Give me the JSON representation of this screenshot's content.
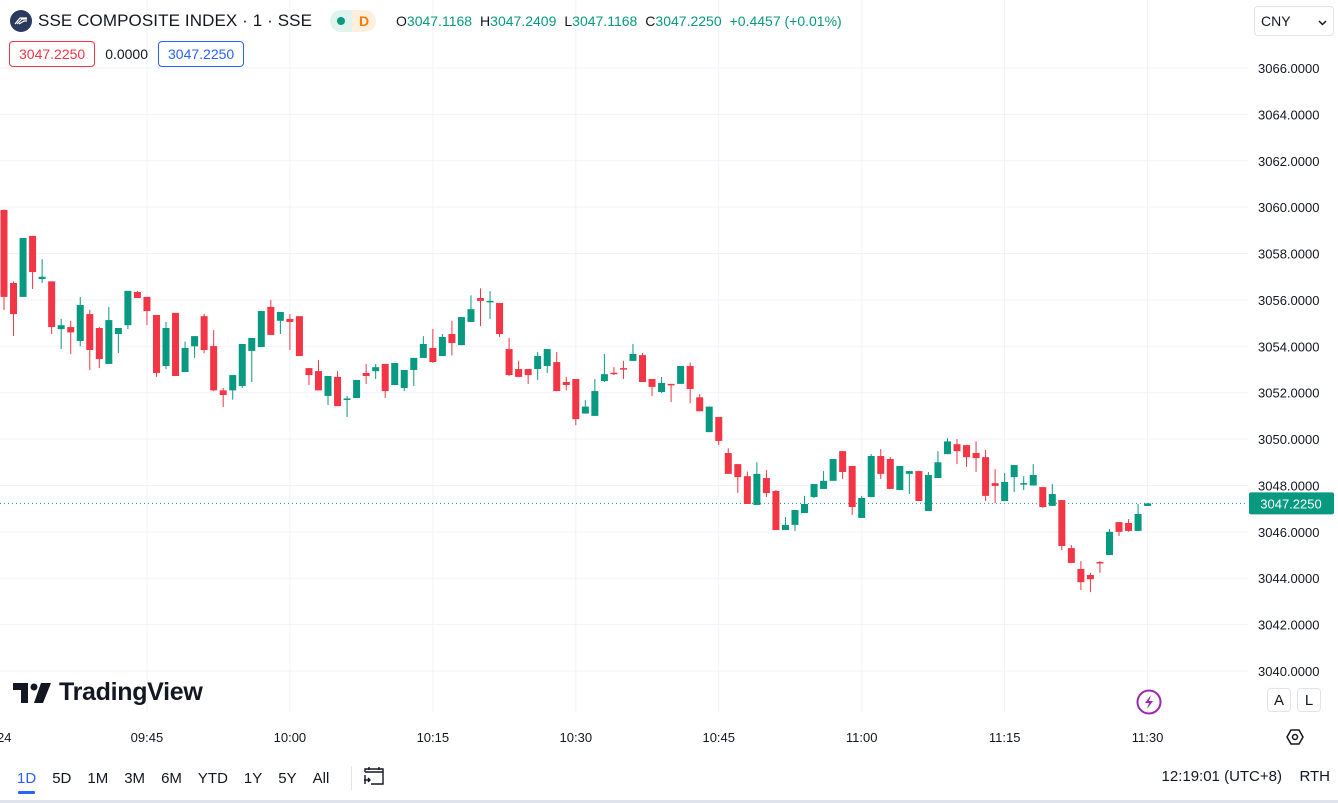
{
  "header": {
    "title": "SSE COMPOSITE INDEX · 1 · SSE",
    "market_status_icon": "market-open-dot",
    "delay_badge": "D",
    "ohlc": {
      "o_label": "O",
      "o": "3047.1168",
      "h_label": "H",
      "h": "3047.2409",
      "l_label": "L",
      "l": "3047.1168",
      "c_label": "C",
      "c": "3047.2250",
      "change": "+0.4457 (+0.01%)"
    },
    "bid": "3047.2250",
    "spread": "0.0000",
    "ask": "3047.2250"
  },
  "currency": "CNY",
  "brand": "TradingView",
  "scale_buttons": {
    "auto": "A",
    "log": "L"
  },
  "toolbar": {
    "ranges": [
      "1D",
      "5D",
      "1M",
      "3M",
      "6M",
      "YTD",
      "1Y",
      "5Y",
      "All"
    ],
    "active_range": "1D",
    "clock": "12:19:01 (UTC+8)",
    "session": "RTH"
  },
  "colors": {
    "up": "#089981",
    "down": "#f23645",
    "accent": "#2962ff"
  },
  "chart_data": {
    "type": "candlestick",
    "interval": "1 minute",
    "ylim": [
      3040,
      3066
    ],
    "y_ticks": [
      "3040.0000",
      "3042.0000",
      "3044.0000",
      "3046.0000",
      "3048.0000",
      "3050.0000",
      "3052.0000",
      "3054.0000",
      "3056.0000",
      "3058.0000",
      "3060.0000",
      "3062.0000",
      "3064.0000",
      "3066.0000"
    ],
    "x_ticks": [
      "09:45",
      "10:00",
      "10:15",
      "10:30",
      "10:45",
      "11:00",
      "11:15",
      "11:30"
    ],
    "x_edge_label": "24",
    "last_price": "3047.2250",
    "grid": true,
    "columns": [
      "time",
      "open",
      "high",
      "low",
      "close"
    ],
    "candles": [
      [
        "09:30",
        3059.88,
        3059.9,
        3055.57,
        3056.13
      ],
      [
        "09:31",
        3056.73,
        3056.8,
        3054.44,
        3055.39
      ],
      [
        "09:32",
        3056.13,
        3058.67,
        3056.13,
        3058.67
      ],
      [
        "09:33",
        3058.76,
        3058.76,
        3056.47,
        3057.2
      ],
      [
        "09:34",
        3056.9,
        3057.76,
        3056.73,
        3057.0
      ],
      [
        "09:35",
        3056.8,
        3056.8,
        3054.53,
        3054.83
      ],
      [
        "09:36",
        3054.74,
        3055.18,
        3053.88,
        3054.91
      ],
      [
        "09:37",
        3054.83,
        3055.1,
        3053.67,
        3054.6
      ],
      [
        "09:38",
        3054.23,
        3056.13,
        3054.0,
        3055.78
      ],
      [
        "09:39",
        3055.39,
        3055.57,
        3052.98,
        3053.84
      ],
      [
        "09:40",
        3054.79,
        3054.83,
        3053.06,
        3053.45
      ],
      [
        "09:41",
        3053.24,
        3055.7,
        3053.24,
        3055.13
      ],
      [
        "09:42",
        3054.53,
        3054.79,
        3053.71,
        3054.79
      ],
      [
        "09:43",
        3054.91,
        3056.39,
        3054.74,
        3056.39
      ],
      [
        "09:44",
        3056.34,
        3056.39,
        3056.08,
        3056.08
      ],
      [
        "09:45",
        3056.13,
        3056.13,
        3054.91,
        3055.52
      ],
      [
        "09:46",
        3055.35,
        3055.35,
        3052.68,
        3052.85
      ],
      [
        "09:47",
        3053.15,
        3055.05,
        3053.02,
        3054.79
      ],
      [
        "09:48",
        3055.44,
        3055.44,
        3052.72,
        3052.72
      ],
      [
        "09:49",
        3052.89,
        3054.2,
        3052.89,
        3053.93
      ],
      [
        "09:50",
        3054.0,
        3054.44,
        3053.5,
        3054.44
      ],
      [
        "09:51",
        3055.3,
        3055.4,
        3053.7,
        3053.84
      ],
      [
        "09:52",
        3054.01,
        3054.7,
        3052.07,
        3052.1
      ],
      [
        "09:53",
        3052.1,
        3052.2,
        3051.38,
        3051.9
      ],
      [
        "09:54",
        3052.1,
        3052.76,
        3051.7,
        3052.76
      ],
      [
        "09:55",
        3052.29,
        3054.1,
        3052.2,
        3054.1
      ],
      [
        "09:56",
        3053.8,
        3054.36,
        3052.46,
        3054.36
      ],
      [
        "09:57",
        3053.97,
        3055.52,
        3053.97,
        3055.52
      ],
      [
        "09:58",
        3055.7,
        3056.0,
        3054.49,
        3054.49
      ],
      [
        "09:59",
        3055.1,
        3055.48,
        3054.53,
        3055.48
      ],
      [
        "10:00",
        3055.18,
        3055.39,
        3053.84,
        3055.05
      ],
      [
        "10:01",
        3055.3,
        3055.3,
        3053.58,
        3053.58
      ],
      [
        "10:02",
        3053.06,
        3053.06,
        3052.33,
        3052.76
      ],
      [
        "10:03",
        3052.93,
        3053.4,
        3052.1,
        3052.1
      ],
      [
        "10:04",
        3051.86,
        3052.72,
        3051.47,
        3052.72
      ],
      [
        "10:05",
        3052.68,
        3052.93,
        3051.42,
        3051.42
      ],
      [
        "10:06",
        3051.7,
        3051.86,
        3050.95,
        3051.75
      ],
      [
        "10:07",
        3051.77,
        3052.55,
        3051.77,
        3052.55
      ],
      [
        "10:08",
        3052.85,
        3053.24,
        3052.38,
        3052.72
      ],
      [
        "10:09",
        3052.93,
        3053.24,
        3052.59,
        3053.1
      ],
      [
        "10:10",
        3053.24,
        3053.24,
        3051.77,
        3052.07
      ],
      [
        "10:11",
        3052.33,
        3053.28,
        3052.33,
        3053.28
      ],
      [
        "10:12",
        3052.2,
        3052.98,
        3052.07,
        3052.98
      ],
      [
        "10:13",
        3052.98,
        3053.5,
        3052.29,
        3053.5
      ],
      [
        "10:14",
        3053.5,
        3054.44,
        3053.5,
        3054.1
      ],
      [
        "10:15",
        3053.93,
        3054.75,
        3053.28,
        3053.32
      ],
      [
        "10:16",
        3053.58,
        3054.53,
        3053.58,
        3054.4
      ],
      [
        "10:17",
        3054.53,
        3055.1,
        3053.6,
        3054.14
      ],
      [
        "10:18",
        3054.05,
        3055.26,
        3054.05,
        3055.26
      ],
      [
        "10:19",
        3055.05,
        3056.2,
        3055.05,
        3055.6
      ],
      [
        "10:20",
        3056.08,
        3056.5,
        3054.87,
        3055.96
      ],
      [
        "10:21",
        3055.94,
        3056.38,
        3055.18,
        3055.96
      ],
      [
        "10:22",
        3055.87,
        3055.87,
        3054.4,
        3054.53
      ],
      [
        "10:23",
        3053.88,
        3054.36,
        3052.72,
        3052.76
      ],
      [
        "10:24",
        3053.02,
        3053.37,
        3052.68,
        3052.68
      ],
      [
        "10:25",
        3053.02,
        3053.02,
        3052.38,
        3052.76
      ],
      [
        "10:26",
        3053.02,
        3053.75,
        3052.55,
        3053.58
      ],
      [
        "10:27",
        3053.15,
        3053.88,
        3052.85,
        3053.88
      ],
      [
        "10:28",
        3053.32,
        3053.75,
        3052.07,
        3052.07
      ],
      [
        "10:29",
        3052.46,
        3052.68,
        3052.1,
        3052.33
      ],
      [
        "10:30",
        3052.59,
        3052.59,
        3050.6,
        3050.86
      ],
      [
        "10:31",
        3051.1,
        3051.68,
        3051.1,
        3051.4
      ],
      [
        "10:32",
        3051.0,
        3052.59,
        3051.0,
        3052.07
      ],
      [
        "10:33",
        3052.5,
        3053.67,
        3052.46,
        3052.8
      ],
      [
        "10:34",
        3052.86,
        3053.1,
        3052.76,
        3052.8
      ],
      [
        "10:35",
        3053.06,
        3053.37,
        3052.59,
        3053.02
      ],
      [
        "10:36",
        3053.37,
        3054.1,
        3053.37,
        3053.67
      ],
      [
        "10:37",
        3053.62,
        3053.71,
        3052.46,
        3052.46
      ],
      [
        "10:38",
        3052.59,
        3052.59,
        3051.86,
        3052.25
      ],
      [
        "10:39",
        3052.03,
        3052.68,
        3051.99,
        3052.42
      ],
      [
        "10:40",
        3052.38,
        3052.38,
        3051.6,
        3052.35
      ],
      [
        "10:41",
        3052.38,
        3053.15,
        3052.38,
        3053.15
      ],
      [
        "10:42",
        3053.15,
        3053.3,
        3051.55,
        3052.16
      ],
      [
        "10:43",
        3051.8,
        3051.94,
        3051.2,
        3051.2
      ],
      [
        "10:44",
        3050.3,
        3051.4,
        3050.3,
        3051.4
      ],
      [
        "10:45",
        3050.95,
        3050.95,
        3049.74,
        3049.92
      ],
      [
        "10:46",
        3049.4,
        3049.6,
        3048.5,
        3048.5
      ],
      [
        "10:47",
        3048.92,
        3048.92,
        3047.68,
        3048.36
      ],
      [
        "10:48",
        3048.4,
        3048.6,
        3047.2,
        3047.2
      ],
      [
        "10:49",
        3047.16,
        3049.0,
        3047.16,
        3048.5
      ],
      [
        "10:50",
        3048.32,
        3048.66,
        3047.5,
        3047.67
      ],
      [
        "10:51",
        3047.76,
        3047.8,
        3046.08,
        3046.08
      ],
      [
        "10:52",
        3046.08,
        3046.64,
        3046.08,
        3046.3
      ],
      [
        "10:53",
        3046.3,
        3046.94,
        3046.04,
        3046.94
      ],
      [
        "10:54",
        3046.81,
        3047.55,
        3046.81,
        3047.2
      ],
      [
        "10:55",
        3047.5,
        3048.06,
        3047.46,
        3048.06
      ],
      [
        "10:56",
        3047.85,
        3048.62,
        3047.85,
        3048.2
      ],
      [
        "10:57",
        3048.2,
        3049.14,
        3048.2,
        3049.14
      ],
      [
        "10:58",
        3049.48,
        3049.48,
        3048.28,
        3048.58
      ],
      [
        "10:59",
        3048.84,
        3048.84,
        3046.73,
        3047.07
      ],
      [
        "11:00",
        3046.6,
        3047.55,
        3046.6,
        3047.46
      ],
      [
        "11:01",
        3047.5,
        3049.35,
        3047.5,
        3049.27
      ],
      [
        "11:02",
        3049.27,
        3049.57,
        3048.28,
        3048.5
      ],
      [
        "11:03",
        3049.14,
        3049.22,
        3047.85,
        3047.85
      ],
      [
        "11:04",
        3047.8,
        3048.84,
        3047.8,
        3048.84
      ],
      [
        "11:05",
        3048.5,
        3048.62,
        3047.63,
        3048.62
      ],
      [
        "11:06",
        3048.62,
        3048.62,
        3047.33,
        3047.33
      ],
      [
        "11:07",
        3046.9,
        3048.58,
        3046.9,
        3048.45
      ],
      [
        "11:08",
        3048.32,
        3049.48,
        3048.32,
        3049.0
      ],
      [
        "11:09",
        3049.35,
        3050.04,
        3049.35,
        3049.9
      ],
      [
        "11:10",
        3049.78,
        3050.0,
        3048.92,
        3049.48
      ],
      [
        "11:11",
        3049.74,
        3049.74,
        3048.8,
        3049.22
      ],
      [
        "11:12",
        3049.4,
        3049.9,
        3048.58,
        3049.18
      ],
      [
        "11:13",
        3049.22,
        3049.53,
        3047.33,
        3047.55
      ],
      [
        "11:14",
        3048.1,
        3048.7,
        3047.24,
        3047.98
      ],
      [
        "11:15",
        3047.33,
        3048.54,
        3047.33,
        3048.15
      ],
      [
        "11:16",
        3048.36,
        3048.88,
        3047.72,
        3048.88
      ],
      [
        "11:17",
        3048.06,
        3048.4,
        3047.8,
        3048.1
      ],
      [
        "11:18",
        3048.0,
        3048.92,
        3048.0,
        3048.45
      ],
      [
        "11:19",
        3047.93,
        3047.93,
        3047.03,
        3047.07
      ],
      [
        "11:20",
        3047.12,
        3048.06,
        3047.12,
        3047.63
      ],
      [
        "11:21",
        3047.37,
        3047.37,
        3045.2,
        3045.39
      ],
      [
        "11:22",
        3045.3,
        3045.43,
        3044.66,
        3044.66
      ],
      [
        "11:23",
        3044.4,
        3044.74,
        3043.49,
        3043.83
      ],
      [
        "11:24",
        3044.14,
        3044.23,
        3043.4,
        3043.96
      ],
      [
        "11:25",
        3044.7,
        3044.74,
        3044.23,
        3044.66
      ],
      [
        "11:26",
        3045.0,
        3046.12,
        3045.0,
        3046.0
      ],
      [
        "11:27",
        3046.42,
        3046.42,
        3045.82,
        3046.0
      ],
      [
        "11:28",
        3046.38,
        3046.55,
        3046.0,
        3046.04
      ],
      [
        "11:29",
        3046.04,
        3047.2,
        3046.04,
        3046.77
      ],
      [
        "11:30",
        3047.1168,
        3047.2409,
        3047.1168,
        3047.225
      ]
    ]
  }
}
